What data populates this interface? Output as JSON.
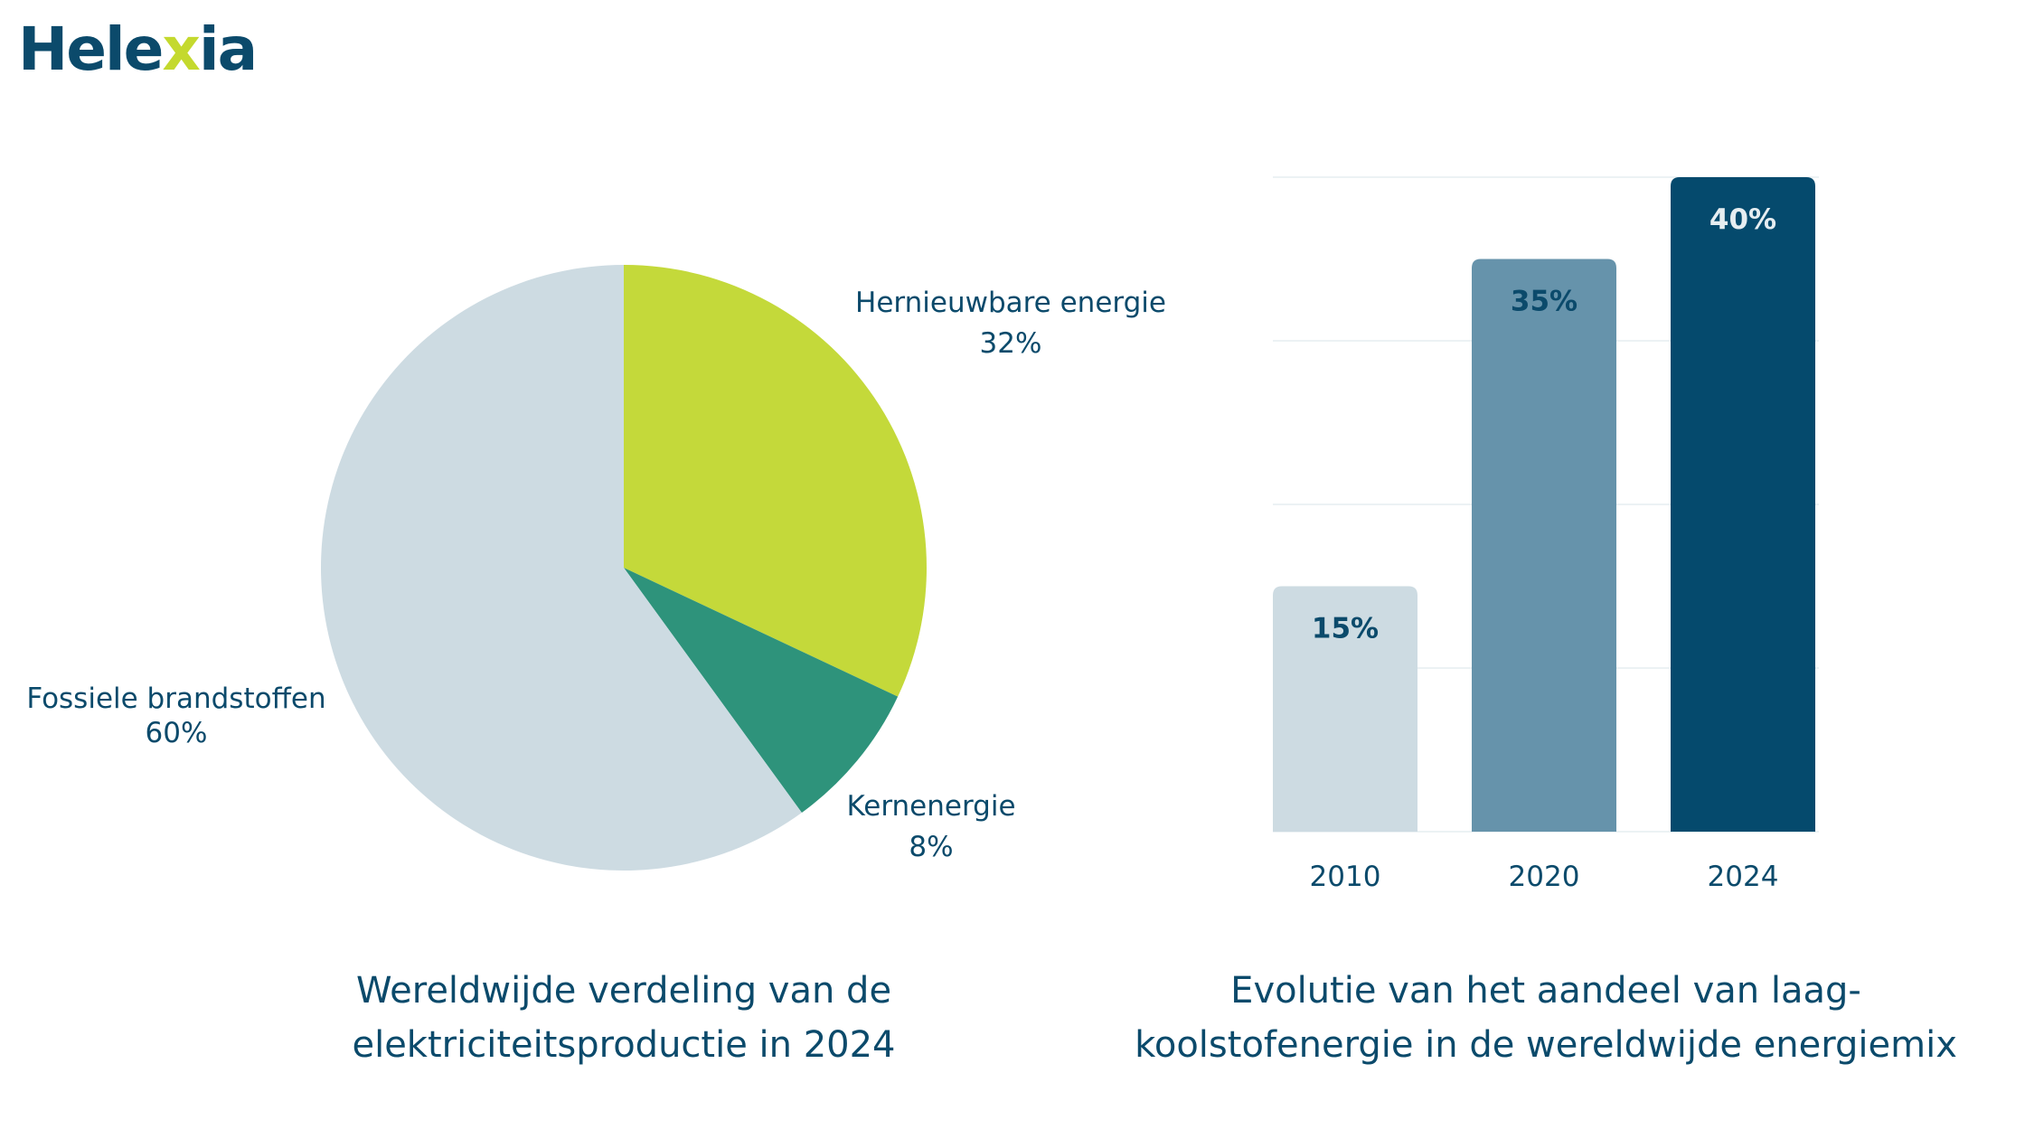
{
  "brand": {
    "logo_part1": "Hele",
    "logo_x": "x",
    "logo_part2": "ia"
  },
  "colors": {
    "text": "#0b4a6b",
    "fossil": "#cddbe2",
    "renewable": "#c4d93a",
    "nuclear": "#2e937b",
    "bar_2010": "#cddbe2",
    "bar_2020": "#6693ab",
    "bar_2024": "#054a6d"
  },
  "chart_data": [
    {
      "type": "pie",
      "title": "Wereldwijde verdeling van de elektriciteitsproductie in 2024",
      "slices": [
        {
          "label": "Hernieuwbare energie",
          "value": 32,
          "value_label": "32%",
          "color": "#c4d93a"
        },
        {
          "label": "Kernenergie",
          "value": 8,
          "value_label": "8%",
          "color": "#2e937b"
        },
        {
          "label": "Fossiele brandstoffen",
          "value": 60,
          "value_label": "60%",
          "color": "#cddbe2"
        }
      ]
    },
    {
      "type": "bar",
      "title": "Evolutie van het aandeel van laag-koolstofenergie in de wereldwijde energiemix",
      "categories": [
        "2010",
        "2020",
        "2024"
      ],
      "values": [
        15,
        35,
        40
      ],
      "value_labels": [
        "15%",
        "35%",
        "40%"
      ],
      "ylim": [
        0,
        40
      ],
      "grid": true,
      "colors": [
        "#cddbe2",
        "#6693ab",
        "#054a6d"
      ]
    }
  ],
  "captions": {
    "pie_line1": "Wereldwijde verdeling van de",
    "pie_line2": "elektriciteitsproductie in 2024",
    "bar_line1": "Evolutie van het aandeel van laag-",
    "bar_line2": "koolstofenergie in de wereldwijde energiemix"
  }
}
